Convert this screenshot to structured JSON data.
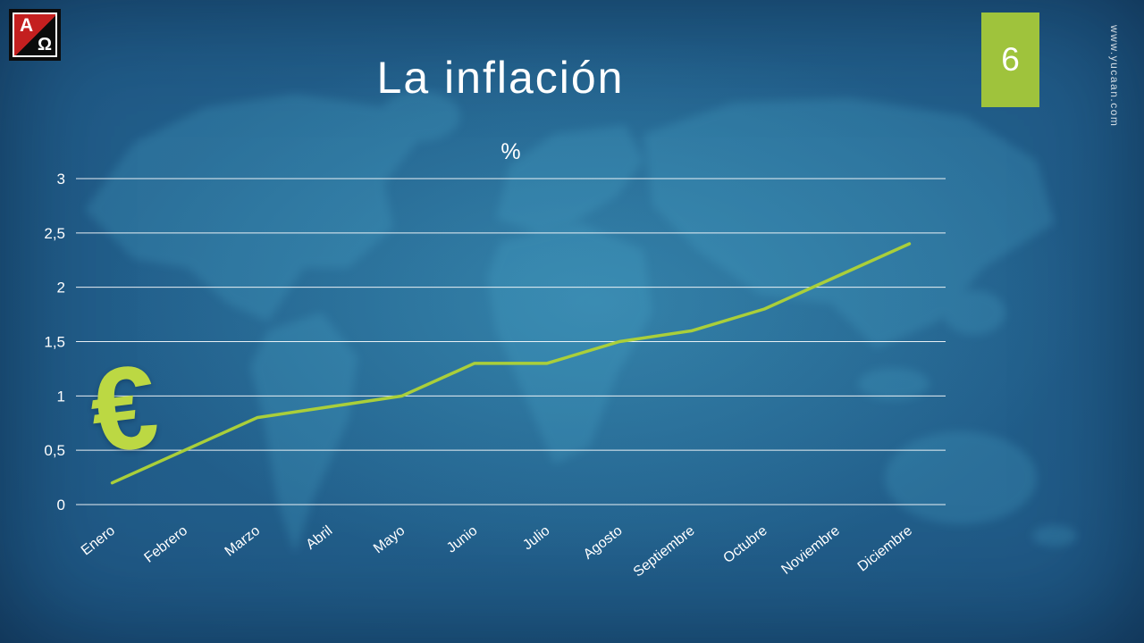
{
  "slide": {
    "title": "La inflación",
    "page_number": "6",
    "watermark": "www.yucaan.com",
    "logo": {
      "letter_a": "A",
      "letter_omega": "Ω"
    }
  },
  "decoration": {
    "euro_symbol": "€"
  },
  "chart_data": {
    "type": "line",
    "title": "%",
    "categories": [
      "Enero",
      "Febrero",
      "Marzo",
      "Abril",
      "Mayo",
      "Junio",
      "Julio",
      "Agosto",
      "Septiembre",
      "Octubre",
      "Noviembre",
      "Diciembre"
    ],
    "values": [
      0.2,
      0.5,
      0.8,
      0.9,
      1.0,
      1.3,
      1.3,
      1.5,
      1.6,
      1.8,
      2.1,
      2.4
    ],
    "xlabel": "",
    "ylabel": "",
    "ylim": [
      0,
      3
    ],
    "ytick_interval": 0.5,
    "ytick_labels": [
      "0",
      "0,5",
      "1",
      "1,5",
      "2",
      "2,5",
      "3"
    ],
    "grid": true,
    "legend": "none",
    "line_color": "#aacf3a",
    "grid_color": "#ffffff",
    "axis_label_color": "#ffffff"
  }
}
